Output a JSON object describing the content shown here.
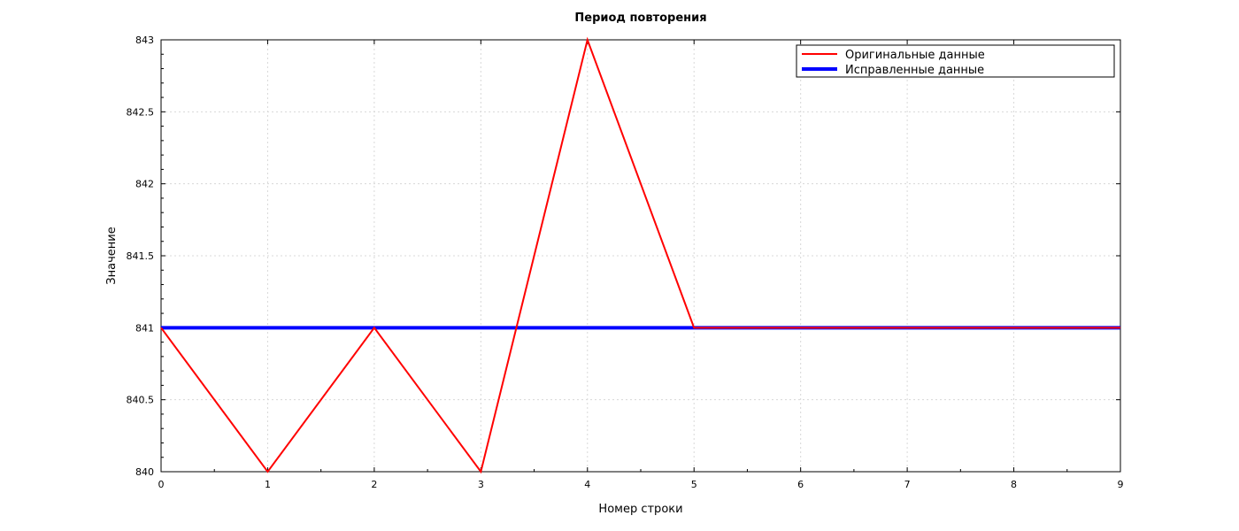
{
  "chart_data": {
    "type": "line",
    "title": "Период повторения",
    "xlabel": "Номер строки",
    "ylabel": "Значение",
    "xlim": [
      0,
      9
    ],
    "ylim": [
      840,
      843
    ],
    "x_ticks": [
      "0",
      "1",
      "2",
      "3",
      "4",
      "5",
      "6",
      "7",
      "8",
      "9"
    ],
    "y_ticks": [
      "840",
      "840.5",
      "841",
      "841.5",
      "842",
      "842.5",
      "843"
    ],
    "grid": true,
    "legend_position": "top-right",
    "series": [
      {
        "name": "Оригинальные данные",
        "color": "#ff0000",
        "x": [
          0,
          1,
          2,
          3,
          4,
          5,
          6,
          7,
          8,
          9
        ],
        "values": [
          841,
          840,
          841,
          840,
          843,
          841,
          841,
          841,
          841,
          841
        ]
      },
      {
        "name": "Исправленные данные",
        "color": "#0000ff",
        "x": [
          0,
          1,
          2,
          3,
          4,
          5,
          6,
          7,
          8,
          9
        ],
        "values": [
          841,
          841,
          841,
          841,
          841,
          841,
          841,
          841,
          841,
          841
        ]
      }
    ]
  }
}
